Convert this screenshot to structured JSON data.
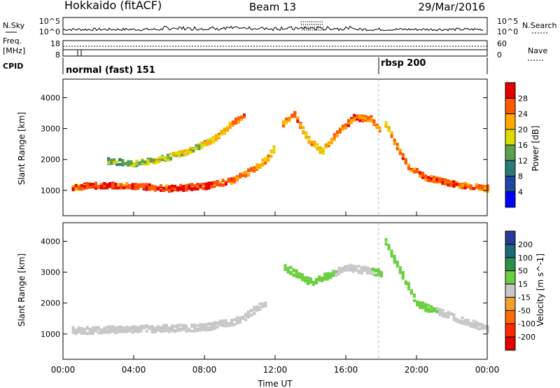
{
  "header": {
    "radar": "Hokkaido (fitACF)",
    "beam": "Beam 13",
    "date": "29/Mar/2016"
  },
  "strip": {
    "nsky_label": "N.Sky",
    "nsearch_label": "N.Search",
    "freq_label_1": "Freq.",
    "freq_label_2": "[MHz]",
    "nave_label": "Nave",
    "cpid_label": "CPID",
    "left_top_tick": "10^5",
    "left_bottom_tick": "10^0",
    "right_top_tick": "10^5",
    "right_bottom_tick": "10^0",
    "freq_left_ticks": [
      "18",
      "8"
    ],
    "freq_right_ticks": [
      "60",
      "0"
    ],
    "cpid_segments": [
      {
        "label": "normal (fast) 151",
        "start_hour": 0.0
      },
      {
        "label": "rbsp 200",
        "start_hour": 18.0
      }
    ]
  },
  "colorbars": {
    "power": {
      "label": "Power [dB]",
      "ticks": [
        "28",
        "24",
        "20",
        "16",
        "12",
        "8",
        "4"
      ],
      "colors": [
        "#e60000",
        "#ff5a00",
        "#ffaa00",
        "#dcdc00",
        "#5aa050",
        "#2a7a7a",
        "#1a4aa0",
        "#0000ff"
      ]
    },
    "velocity": {
      "label": "Velocity [m s^-1]",
      "ticks": [
        "200",
        "100",
        "50",
        "15",
        "-15",
        "-50",
        "-100",
        "-200"
      ],
      "colors": [
        "#2a3a9a",
        "#1e6a7a",
        "#2e8e4e",
        "#6ad040",
        "#c8c8c8",
        "#f0a030",
        "#ff6a00",
        "#ff2a00",
        "#e60000"
      ]
    }
  },
  "chart_data": [
    {
      "type": "heatmap",
      "title": "Power",
      "ylabel": "Slant Range [km]",
      "xlabel": "",
      "x_ticks": [
        "00:00",
        "04:00",
        "08:00",
        "12:00",
        "16:00",
        "20:00",
        "00:00"
      ],
      "xlim_hours": [
        0,
        24
      ],
      "y_ticks": [
        1000,
        2000,
        3000,
        4000
      ],
      "ylim": [
        180,
        4600
      ],
      "colorscale": "power_dB",
      "zlim": [
        0,
        32
      ],
      "features": [
        {
          "name": "main-band",
          "points": [
            [
              0.5,
              1150,
              28
            ],
            [
              2,
              1200,
              30
            ],
            [
              4,
              1180,
              29
            ],
            [
              6,
              1100,
              30
            ],
            [
              8,
              1180,
              30
            ],
            [
              9.5,
              1350,
              29
            ],
            [
              10.5,
              1650,
              26
            ],
            [
              11.5,
              2050,
              24
            ],
            [
              12,
              2500,
              22
            ]
          ]
        },
        {
          "name": "upper-band",
          "points": [
            [
              2.5,
              2000,
              16
            ],
            [
              4,
              1900,
              18
            ],
            [
              5.5,
              2050,
              20
            ],
            [
              7,
              2300,
              20
            ],
            [
              8.5,
              2700,
              22
            ],
            [
              9.5,
              3200,
              26
            ],
            [
              10.3,
              3500,
              28
            ]
          ]
        },
        {
          "name": "noon-arc",
          "points": [
            [
              12.4,
              3200,
              24
            ],
            [
              13,
              3550,
              28
            ],
            [
              13.8,
              2700,
              24
            ],
            [
              14.6,
              2300,
              22
            ],
            [
              15.4,
              2850,
              26
            ],
            [
              16.4,
              3400,
              28
            ],
            [
              17.4,
              3350,
              26
            ],
            [
              18,
              2900,
              24
            ]
          ]
        },
        {
          "name": "evening-descent",
          "points": [
            [
              18.2,
              3200,
              22
            ],
            [
              18.8,
              2500,
              26
            ],
            [
              19.5,
              1800,
              28
            ],
            [
              20.5,
              1450,
              28
            ],
            [
              22,
              1250,
              28
            ],
            [
              24,
              1100,
              26
            ]
          ]
        }
      ]
    },
    {
      "type": "heatmap",
      "title": "Velocity",
      "ylabel": "Slant Range [km]",
      "xlabel": "Time UT",
      "x_ticks": [
        "00:00",
        "04:00",
        "08:00",
        "12:00",
        "16:00",
        "20:00",
        "00:00"
      ],
      "xlim_hours": [
        0,
        24
      ],
      "y_ticks": [
        1000,
        2000,
        3000,
        4000
      ],
      "ylim": [
        180,
        4600
      ],
      "colorscale": "velocity_ms",
      "zlim": [
        -250,
        250
      ],
      "features": [
        {
          "name": "ground-scatter",
          "points": [
            [
              0.5,
              1150,
              0
            ],
            [
              4,
              1200,
              0
            ],
            [
              8,
              1250,
              0
            ],
            [
              10,
              1500,
              0
            ],
            [
              11.5,
              2100,
              0
            ]
          ]
        },
        {
          "name": "noon-arc",
          "points": [
            [
              12.5,
              3200,
              30
            ],
            [
              14,
              2700,
              40
            ],
            [
              16,
              3200,
              0
            ],
            [
              18,
              3000,
              20
            ]
          ]
        },
        {
          "name": "evening-descent",
          "points": [
            [
              18.2,
              4000,
              40
            ],
            [
              19,
              3100,
              35
            ],
            [
              20,
              2000,
              30
            ],
            [
              22,
              1600,
              0
            ],
            [
              24,
              1200,
              0
            ]
          ]
        }
      ]
    }
  ]
}
